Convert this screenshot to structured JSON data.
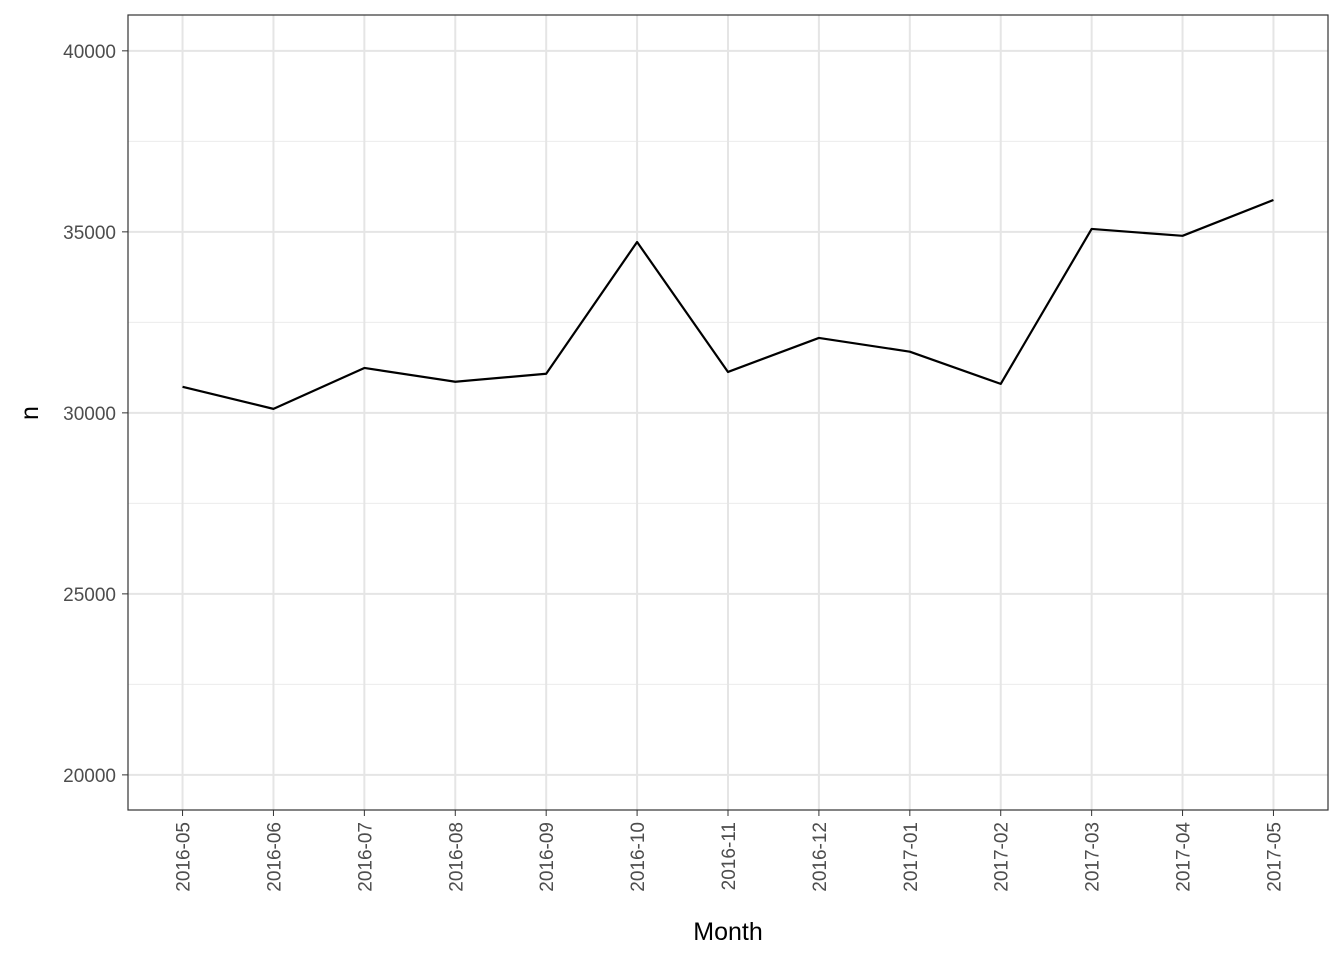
{
  "chart_data": {
    "type": "line",
    "x_label": "Month",
    "y_label": "n",
    "categories": [
      "2016-05",
      "2016-06",
      "2016-07",
      "2016-08",
      "2016-09",
      "2016-10",
      "2016-11",
      "2016-12",
      "2017-01",
      "2017-02",
      "2017-03",
      "2017-04",
      "2017-05"
    ],
    "series": [
      {
        "color": "#000000",
        "values": [
          30720,
          30110,
          31240,
          30860,
          31080,
          34720,
          31130,
          32070,
          31690,
          30800,
          35080,
          34890,
          35880
        ]
      }
    ],
    "ylim": [
      19030,
      40990
    ],
    "yticks": [
      20000,
      25000,
      30000,
      35000,
      40000
    ],
    "grid": true
  }
}
